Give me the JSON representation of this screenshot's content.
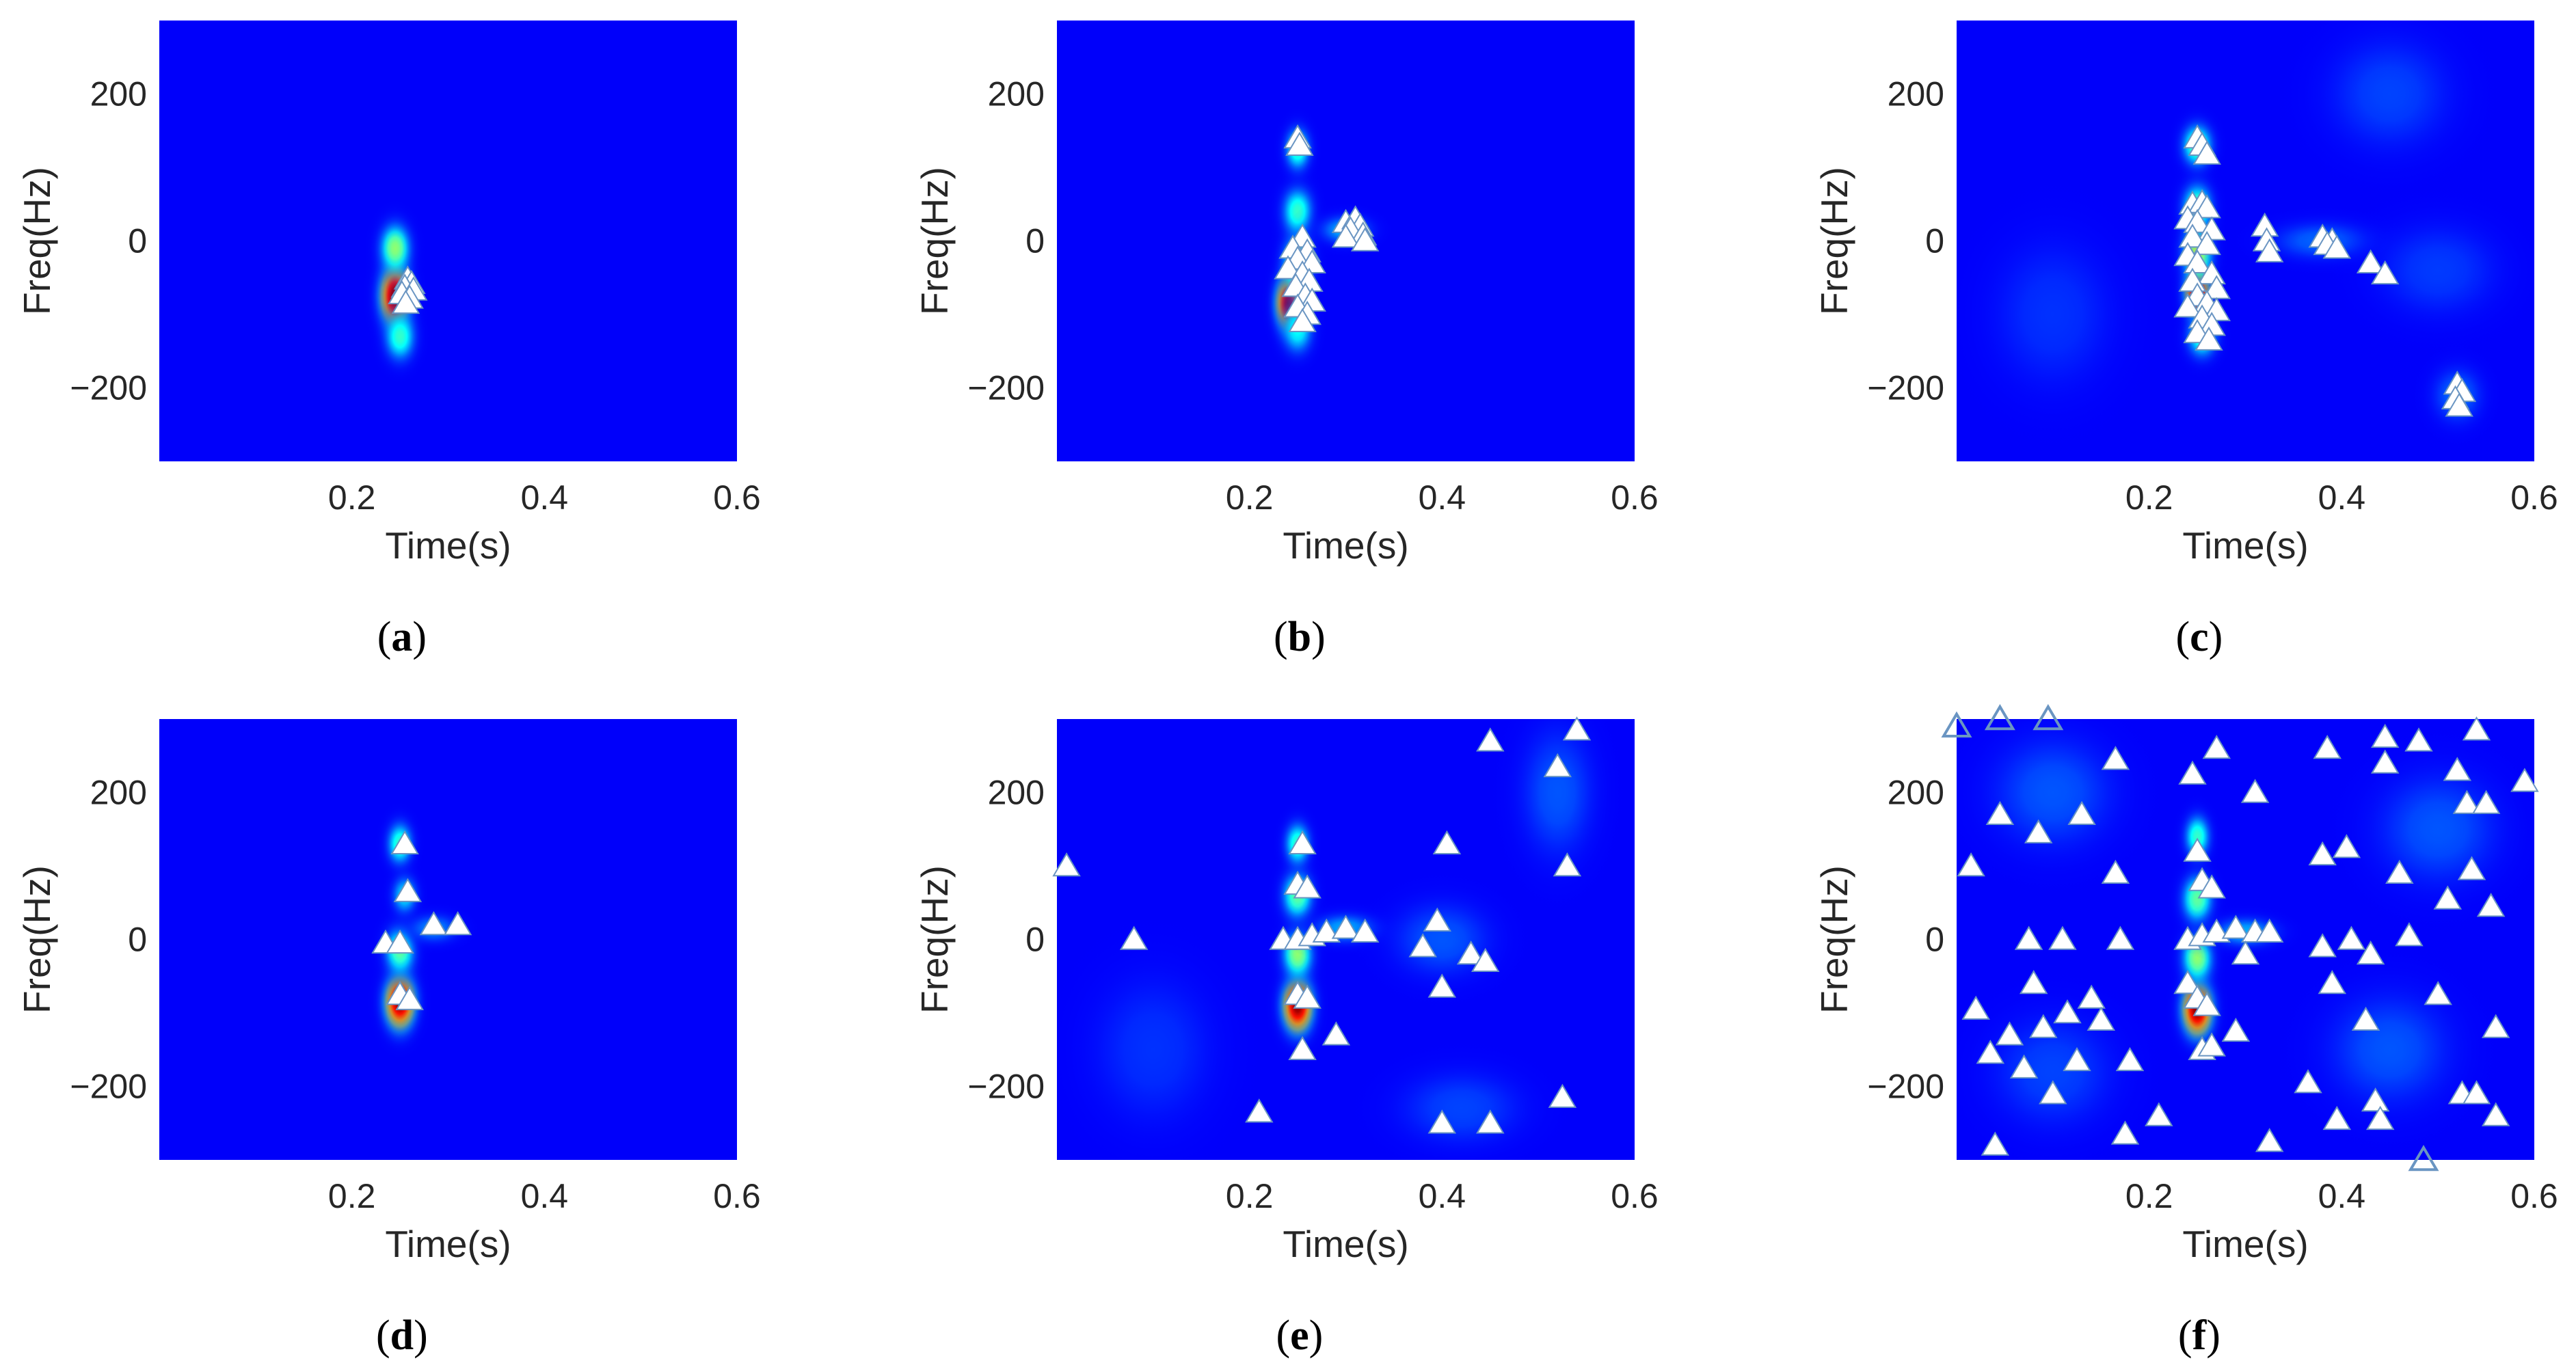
{
  "chart_data": [
    {
      "type": "heatmap",
      "panel_label": "a",
      "xlabel": "Time(s)",
      "ylabel": "Freq(Hz)",
      "xlim": [
        0,
        0.6
      ],
      "ylim": [
        -300,
        300
      ],
      "xticks": [
        0.2,
        0.4,
        0.6
      ],
      "yticks": [
        200,
        0,
        -200
      ],
      "colormap": "jet",
      "hotspots": [
        {
          "t": 0.245,
          "f": -75,
          "amp": 1.0,
          "st": 0.012,
          "sf": 32
        },
        {
          "t": 0.245,
          "f": -10,
          "amp": 0.45,
          "st": 0.012,
          "sf": 25
        },
        {
          "t": 0.25,
          "f": -130,
          "amp": 0.35,
          "st": 0.012,
          "sf": 25
        }
      ],
      "markers": [
        {
          "t": 0.258,
          "f": -52
        },
        {
          "t": 0.262,
          "f": -58
        },
        {
          "t": 0.255,
          "f": -63
        },
        {
          "t": 0.264,
          "f": -67
        },
        {
          "t": 0.252,
          "f": -72
        },
        {
          "t": 0.26,
          "f": -78
        },
        {
          "t": 0.256,
          "f": -85
        }
      ]
    },
    {
      "type": "heatmap",
      "panel_label": "b",
      "xlabel": "Time(s)",
      "ylabel": "Freq(Hz)",
      "xlim": [
        0,
        0.6
      ],
      "ylim": [
        -300,
        300
      ],
      "xticks": [
        0.2,
        0.4,
        0.6
      ],
      "yticks": [
        200,
        0,
        -200
      ],
      "colormap": "jet",
      "hotspots": [
        {
          "t": 0.24,
          "f": -85,
          "amp": 0.95,
          "st": 0.01,
          "sf": 28
        },
        {
          "t": 0.25,
          "f": -30,
          "amp": 0.45,
          "st": 0.012,
          "sf": 30
        },
        {
          "t": 0.25,
          "f": 40,
          "amp": 0.35,
          "st": 0.012,
          "sf": 25
        },
        {
          "t": 0.25,
          "f": 125,
          "amp": 0.35,
          "st": 0.01,
          "sf": 22
        },
        {
          "t": 0.3,
          "f": 15,
          "amp": 0.2,
          "st": 0.02,
          "sf": 15
        },
        {
          "t": 0.25,
          "f": -120,
          "amp": 0.3,
          "st": 0.012,
          "sf": 25
        }
      ],
      "markers": [
        {
          "t": 0.25,
          "f": 140
        },
        {
          "t": 0.252,
          "f": 130
        },
        {
          "t": 0.255,
          "f": 5
        },
        {
          "t": 0.245,
          "f": -10
        },
        {
          "t": 0.26,
          "f": -15
        },
        {
          "t": 0.25,
          "f": -25
        },
        {
          "t": 0.265,
          "f": -30
        },
        {
          "t": 0.24,
          "f": -38
        },
        {
          "t": 0.255,
          "f": -45
        },
        {
          "t": 0.262,
          "f": -55
        },
        {
          "t": 0.248,
          "f": -62
        },
        {
          "t": 0.258,
          "f": -75
        },
        {
          "t": 0.265,
          "f": -82
        },
        {
          "t": 0.25,
          "f": -90
        },
        {
          "t": 0.26,
          "f": -100
        },
        {
          "t": 0.255,
          "f": -110
        },
        {
          "t": 0.3,
          "f": 25
        },
        {
          "t": 0.31,
          "f": 30
        },
        {
          "t": 0.315,
          "f": 20
        },
        {
          "t": 0.305,
          "f": 15
        },
        {
          "t": 0.318,
          "f": 8
        },
        {
          "t": 0.3,
          "f": 5
        },
        {
          "t": 0.32,
          "f": 0
        }
      ]
    },
    {
      "type": "heatmap",
      "panel_label": "c",
      "xlabel": "Time(s)",
      "ylabel": "Freq(Hz)",
      "xlim": [
        0,
        0.6
      ],
      "ylim": [
        -300,
        300
      ],
      "xticks": [
        0.2,
        0.4,
        0.6
      ],
      "yticks": [
        200,
        0,
        -200
      ],
      "colormap": "jet",
      "hotspots": [
        {
          "t": 0.25,
          "f": -70,
          "amp": 1.0,
          "st": 0.01,
          "sf": 26
        },
        {
          "t": 0.25,
          "f": -15,
          "amp": 0.5,
          "st": 0.012,
          "sf": 30
        },
        {
          "t": 0.25,
          "f": 45,
          "amp": 0.4,
          "st": 0.012,
          "sf": 25
        },
        {
          "t": 0.25,
          "f": 130,
          "amp": 0.4,
          "st": 0.012,
          "sf": 22
        },
        {
          "t": 0.255,
          "f": -130,
          "amp": 0.35,
          "st": 0.012,
          "sf": 22
        },
        {
          "t": 0.38,
          "f": 0,
          "amp": 0.12,
          "st": 0.04,
          "sf": 20
        },
        {
          "t": 0.52,
          "f": -210,
          "amp": 0.12,
          "st": 0.02,
          "sf": 30
        },
        {
          "t": 0.45,
          "f": 200,
          "amp": 0.08,
          "st": 0.05,
          "sf": 60
        },
        {
          "t": 0.1,
          "f": -100,
          "amp": 0.06,
          "st": 0.05,
          "sf": 80
        },
        {
          "t": 0.5,
          "f": -40,
          "amp": 0.07,
          "st": 0.05,
          "sf": 50
        }
      ],
      "markers": [
        {
          "t": 0.25,
          "f": 140
        },
        {
          "t": 0.255,
          "f": 130
        },
        {
          "t": 0.26,
          "f": 118
        },
        {
          "t": 0.245,
          "f": 50
        },
        {
          "t": 0.255,
          "f": 52
        },
        {
          "t": 0.26,
          "f": 45
        },
        {
          "t": 0.24,
          "f": 30
        },
        {
          "t": 0.25,
          "f": 25
        },
        {
          "t": 0.265,
          "f": 15
        },
        {
          "t": 0.245,
          "f": 5
        },
        {
          "t": 0.26,
          "f": -5
        },
        {
          "t": 0.24,
          "f": -20
        },
        {
          "t": 0.25,
          "f": -30
        },
        {
          "t": 0.265,
          "f": -45
        },
        {
          "t": 0.245,
          "f": -55
        },
        {
          "t": 0.27,
          "f": -65
        },
        {
          "t": 0.25,
          "f": -75
        },
        {
          "t": 0.26,
          "f": -85
        },
        {
          "t": 0.24,
          "f": -90
        },
        {
          "t": 0.27,
          "f": -95
        },
        {
          "t": 0.255,
          "f": -105
        },
        {
          "t": 0.265,
          "f": -115
        },
        {
          "t": 0.25,
          "f": -125
        },
        {
          "t": 0.262,
          "f": -135
        },
        {
          "t": 0.32,
          "f": 20
        },
        {
          "t": 0.322,
          "f": 0
        },
        {
          "t": 0.325,
          "f": -15
        },
        {
          "t": 0.38,
          "f": 5
        },
        {
          "t": 0.39,
          "f": 0
        },
        {
          "t": 0.385,
          "f": -5
        },
        {
          "t": 0.395,
          "f": -10
        },
        {
          "t": 0.43,
          "f": -30
        },
        {
          "t": 0.445,
          "f": -45
        },
        {
          "t": 0.52,
          "f": -195
        },
        {
          "t": 0.525,
          "f": -205
        },
        {
          "t": 0.518,
          "f": -215
        },
        {
          "t": 0.522,
          "f": -225
        }
      ]
    },
    {
      "type": "heatmap",
      "panel_label": "d",
      "xlabel": "Time(s)",
      "ylabel": "Freq(Hz)",
      "xlim": [
        0,
        0.6
      ],
      "ylim": [
        -300,
        300
      ],
      "xticks": [
        0.2,
        0.4,
        0.6
      ],
      "yticks": [
        200,
        0,
        -200
      ],
      "colormap": "jet",
      "hotspots": [
        {
          "t": 0.25,
          "f": -85,
          "amp": 1.0,
          "st": 0.012,
          "sf": 28
        },
        {
          "t": 0.25,
          "f": -15,
          "amp": 0.4,
          "st": 0.012,
          "sf": 25
        },
        {
          "t": 0.25,
          "f": 130,
          "amp": 0.35,
          "st": 0.01,
          "sf": 22
        },
        {
          "t": 0.255,
          "f": 60,
          "amp": 0.25,
          "st": 0.01,
          "sf": 20
        },
        {
          "t": 0.285,
          "f": 15,
          "amp": 0.15,
          "st": 0.02,
          "sf": 15
        }
      ],
      "markers": [
        {
          "t": 0.255,
          "f": 130
        },
        {
          "t": 0.258,
          "f": 65
        },
        {
          "t": 0.235,
          "f": -5
        },
        {
          "t": 0.25,
          "f": -5
        },
        {
          "t": 0.285,
          "f": 20
        },
        {
          "t": 0.31,
          "f": 20
        },
        {
          "t": 0.25,
          "f": -75
        },
        {
          "t": 0.26,
          "f": -82
        }
      ]
    },
    {
      "type": "heatmap",
      "panel_label": "e",
      "xlabel": "Time(s)",
      "ylabel": "Freq(Hz)",
      "xlim": [
        0,
        0.6
      ],
      "ylim": [
        -300,
        300
      ],
      "xticks": [
        0.2,
        0.4,
        0.6
      ],
      "yticks": [
        200,
        0,
        -200
      ],
      "colormap": "jet",
      "hotspots": [
        {
          "t": 0.25,
          "f": -90,
          "amp": 1.0,
          "st": 0.012,
          "sf": 28
        },
        {
          "t": 0.25,
          "f": -20,
          "amp": 0.45,
          "st": 0.012,
          "sf": 25
        },
        {
          "t": 0.25,
          "f": 60,
          "amp": 0.4,
          "st": 0.012,
          "sf": 25
        },
        {
          "t": 0.25,
          "f": 130,
          "amp": 0.35,
          "st": 0.01,
          "sf": 22
        },
        {
          "t": 0.3,
          "f": 15,
          "amp": 0.2,
          "st": 0.025,
          "sf": 15
        },
        {
          "t": 0.4,
          "f": 0,
          "amp": 0.1,
          "st": 0.04,
          "sf": 40
        },
        {
          "t": 0.52,
          "f": 200,
          "amp": 0.1,
          "st": 0.03,
          "sf": 70
        },
        {
          "t": 0.42,
          "f": -230,
          "amp": 0.08,
          "st": 0.05,
          "sf": 40
        },
        {
          "t": 0.1,
          "f": -150,
          "amp": 0.06,
          "st": 0.05,
          "sf": 80
        }
      ],
      "markers": [
        {
          "t": 0.01,
          "f": 100
        },
        {
          "t": 0.08,
          "f": 0
        },
        {
          "t": 0.21,
          "f": -235
        },
        {
          "t": 0.255,
          "f": 130
        },
        {
          "t": 0.25,
          "f": 75
        },
        {
          "t": 0.26,
          "f": 70
        },
        {
          "t": 0.235,
          "f": 0
        },
        {
          "t": 0.25,
          "f": 0
        },
        {
          "t": 0.265,
          "f": 5
        },
        {
          "t": 0.28,
          "f": 10
        },
        {
          "t": 0.3,
          "f": 15
        },
        {
          "t": 0.32,
          "f": 10
        },
        {
          "t": 0.25,
          "f": -75
        },
        {
          "t": 0.26,
          "f": -80
        },
        {
          "t": 0.29,
          "f": -130
        },
        {
          "t": 0.255,
          "f": -150
        },
        {
          "t": 0.38,
          "f": -10
        },
        {
          "t": 0.395,
          "f": 25
        },
        {
          "t": 0.4,
          "f": -65
        },
        {
          "t": 0.405,
          "f": 130
        },
        {
          "t": 0.4,
          "f": -250
        },
        {
          "t": 0.43,
          "f": -20
        },
        {
          "t": 0.445,
          "f": -30
        },
        {
          "t": 0.45,
          "f": -250
        },
        {
          "t": 0.45,
          "f": 270
        },
        {
          "t": 0.52,
          "f": 235
        },
        {
          "t": 0.54,
          "f": 285
        },
        {
          "t": 0.53,
          "f": 100
        },
        {
          "t": 0.525,
          "f": -215
        }
      ]
    },
    {
      "type": "heatmap",
      "panel_label": "f",
      "xlabel": "Time(s)",
      "ylabel": "Freq(Hz)",
      "xlim": [
        0,
        0.6
      ],
      "ylim": [
        -300,
        300
      ],
      "xticks": [
        0.2,
        0.4,
        0.6
      ],
      "yticks": [
        200,
        0,
        -200
      ],
      "colormap": "jet",
      "hotspots": [
        {
          "t": 0.25,
          "f": -95,
          "amp": 1.0,
          "st": 0.012,
          "sf": 28
        },
        {
          "t": 0.25,
          "f": -25,
          "amp": 0.45,
          "st": 0.012,
          "sf": 25
        },
        {
          "t": 0.25,
          "f": 55,
          "amp": 0.4,
          "st": 0.012,
          "sf": 25
        },
        {
          "t": 0.25,
          "f": 140,
          "amp": 0.35,
          "st": 0.01,
          "sf": 22
        },
        {
          "t": 0.3,
          "f": 10,
          "amp": 0.2,
          "st": 0.025,
          "sf": 15
        },
        {
          "t": 0.1,
          "f": 200,
          "amp": 0.1,
          "st": 0.05,
          "sf": 60
        },
        {
          "t": 0.45,
          "f": -150,
          "amp": 0.1,
          "st": 0.05,
          "sf": 60
        },
        {
          "t": 0.5,
          "f": 150,
          "amp": 0.1,
          "st": 0.05,
          "sf": 60
        },
        {
          "t": 0.1,
          "f": -180,
          "amp": 0.08,
          "st": 0.05,
          "sf": 60
        }
      ],
      "markers": [
        {
          "t": 0.0,
          "f": 290,
          "open": true
        },
        {
          "t": 0.045,
          "f": 300,
          "open": true
        },
        {
          "t": 0.095,
          "f": 300,
          "open": true
        },
        {
          "t": 0.485,
          "f": -300,
          "open": true
        },
        {
          "t": 0.015,
          "f": 100
        },
        {
          "t": 0.02,
          "f": -95
        },
        {
          "t": 0.035,
          "f": -155
        },
        {
          "t": 0.04,
          "f": -280
        },
        {
          "t": 0.045,
          "f": 170
        },
        {
          "t": 0.055,
          "f": -130
        },
        {
          "t": 0.07,
          "f": -175
        },
        {
          "t": 0.075,
          "f": 0
        },
        {
          "t": 0.08,
          "f": -60
        },
        {
          "t": 0.085,
          "f": 145
        },
        {
          "t": 0.09,
          "f": -120
        },
        {
          "t": 0.1,
          "f": -210
        },
        {
          "t": 0.11,
          "f": 0
        },
        {
          "t": 0.115,
          "f": -100
        },
        {
          "t": 0.125,
          "f": -165
        },
        {
          "t": 0.13,
          "f": 170
        },
        {
          "t": 0.14,
          "f": -80
        },
        {
          "t": 0.15,
          "f": -110
        },
        {
          "t": 0.165,
          "f": 245
        },
        {
          "t": 0.165,
          "f": 90
        },
        {
          "t": 0.17,
          "f": 0
        },
        {
          "t": 0.175,
          "f": -265
        },
        {
          "t": 0.18,
          "f": -165
        },
        {
          "t": 0.21,
          "f": -240
        },
        {
          "t": 0.245,
          "f": 225
        },
        {
          "t": 0.25,
          "f": 120
        },
        {
          "t": 0.255,
          "f": 80
        },
        {
          "t": 0.265,
          "f": 70
        },
        {
          "t": 0.24,
          "f": 0
        },
        {
          "t": 0.255,
          "f": 5
        },
        {
          "t": 0.27,
          "f": 10
        },
        {
          "t": 0.29,
          "f": 15
        },
        {
          "t": 0.31,
          "f": 10
        },
        {
          "t": 0.325,
          "f": 10
        },
        {
          "t": 0.24,
          "f": -60
        },
        {
          "t": 0.25,
          "f": -80
        },
        {
          "t": 0.26,
          "f": -90
        },
        {
          "t": 0.255,
          "f": -150
        },
        {
          "t": 0.265,
          "f": -145
        },
        {
          "t": 0.27,
          "f": 260
        },
        {
          "t": 0.29,
          "f": -125
        },
        {
          "t": 0.3,
          "f": -20
        },
        {
          "t": 0.31,
          "f": 200
        },
        {
          "t": 0.325,
          "f": -275
        },
        {
          "t": 0.365,
          "f": -195
        },
        {
          "t": 0.38,
          "f": -10
        },
        {
          "t": 0.38,
          "f": 115
        },
        {
          "t": 0.385,
          "f": 260
        },
        {
          "t": 0.39,
          "f": -60
        },
        {
          "t": 0.395,
          "f": -245
        },
        {
          "t": 0.405,
          "f": 125
        },
        {
          "t": 0.41,
          "f": 0
        },
        {
          "t": 0.425,
          "f": -110
        },
        {
          "t": 0.43,
          "f": -20
        },
        {
          "t": 0.435,
          "f": -220
        },
        {
          "t": 0.44,
          "f": -245
        },
        {
          "t": 0.445,
          "f": 240
        },
        {
          "t": 0.445,
          "f": 275
        },
        {
          "t": 0.46,
          "f": 90
        },
        {
          "t": 0.47,
          "f": 5
        },
        {
          "t": 0.48,
          "f": 270
        },
        {
          "t": 0.5,
          "f": -75
        },
        {
          "t": 0.51,
          "f": 55
        },
        {
          "t": 0.52,
          "f": 230
        },
        {
          "t": 0.525,
          "f": -210
        },
        {
          "t": 0.53,
          "f": 185
        },
        {
          "t": 0.535,
          "f": 95
        },
        {
          "t": 0.54,
          "f": 285
        },
        {
          "t": 0.54,
          "f": -210
        },
        {
          "t": 0.55,
          "f": 185
        },
        {
          "t": 0.555,
          "f": 45
        },
        {
          "t": 0.56,
          "f": -120
        },
        {
          "t": 0.56,
          "f": -240
        },
        {
          "t": 0.59,
          "f": 215
        }
      ]
    }
  ]
}
